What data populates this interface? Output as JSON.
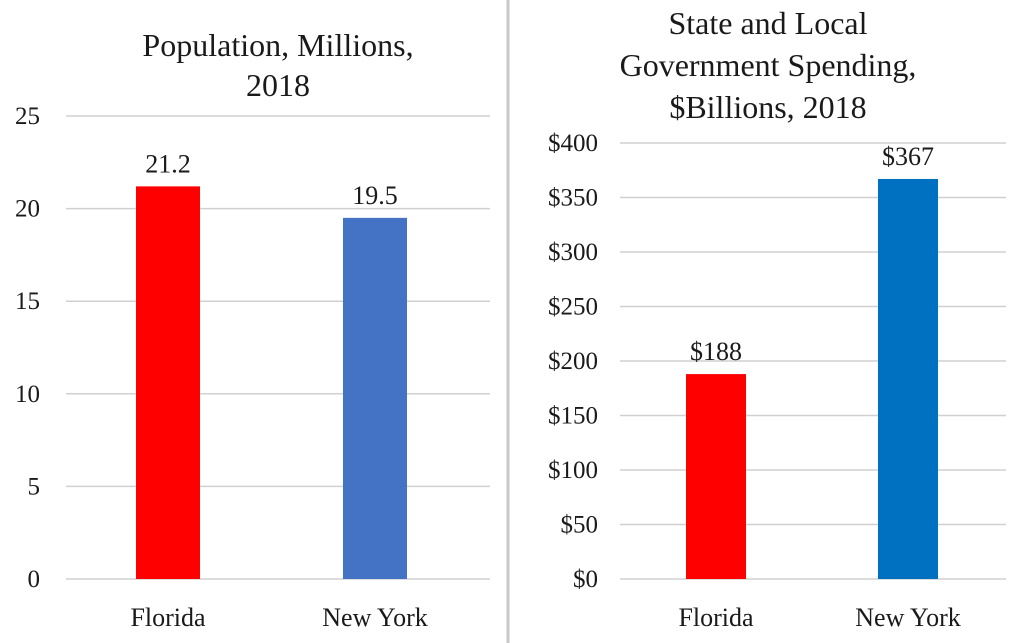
{
  "chart_data": [
    {
      "type": "bar",
      "title_lines": [
        "Population, Millions,",
        "2018"
      ],
      "categories": [
        "Florida",
        "New York"
      ],
      "values": [
        21.2,
        19.5
      ],
      "data_labels": [
        "21.2",
        "19.5"
      ],
      "bar_colors": [
        "#ff0000",
        "#4472c4"
      ],
      "ylim": [
        0,
        25
      ],
      "yticks": [
        0,
        5,
        10,
        15,
        20,
        25
      ],
      "ytick_labels": [
        "0",
        "5",
        "10",
        "15",
        "20",
        "25"
      ],
      "xlabel": "",
      "ylabel": "",
      "grid": true,
      "legend": "none"
    },
    {
      "type": "bar",
      "title_lines": [
        "State and Local",
        "Government Spending,",
        "$Billions, 2018"
      ],
      "categories": [
        "Florida",
        "New York"
      ],
      "values": [
        188,
        367
      ],
      "data_labels": [
        "$188",
        "$367"
      ],
      "bar_colors": [
        "#ff0000",
        "#0070c0"
      ],
      "ylim": [
        0,
        400
      ],
      "yticks": [
        0,
        50,
        100,
        150,
        200,
        250,
        300,
        350,
        400
      ],
      "ytick_labels": [
        "$0",
        "$50",
        "$100",
        "$150",
        "$200",
        "$250",
        "$300",
        "$350",
        "$400"
      ],
      "xlabel": "",
      "ylabel": "",
      "grid": true,
      "legend": "none"
    }
  ]
}
